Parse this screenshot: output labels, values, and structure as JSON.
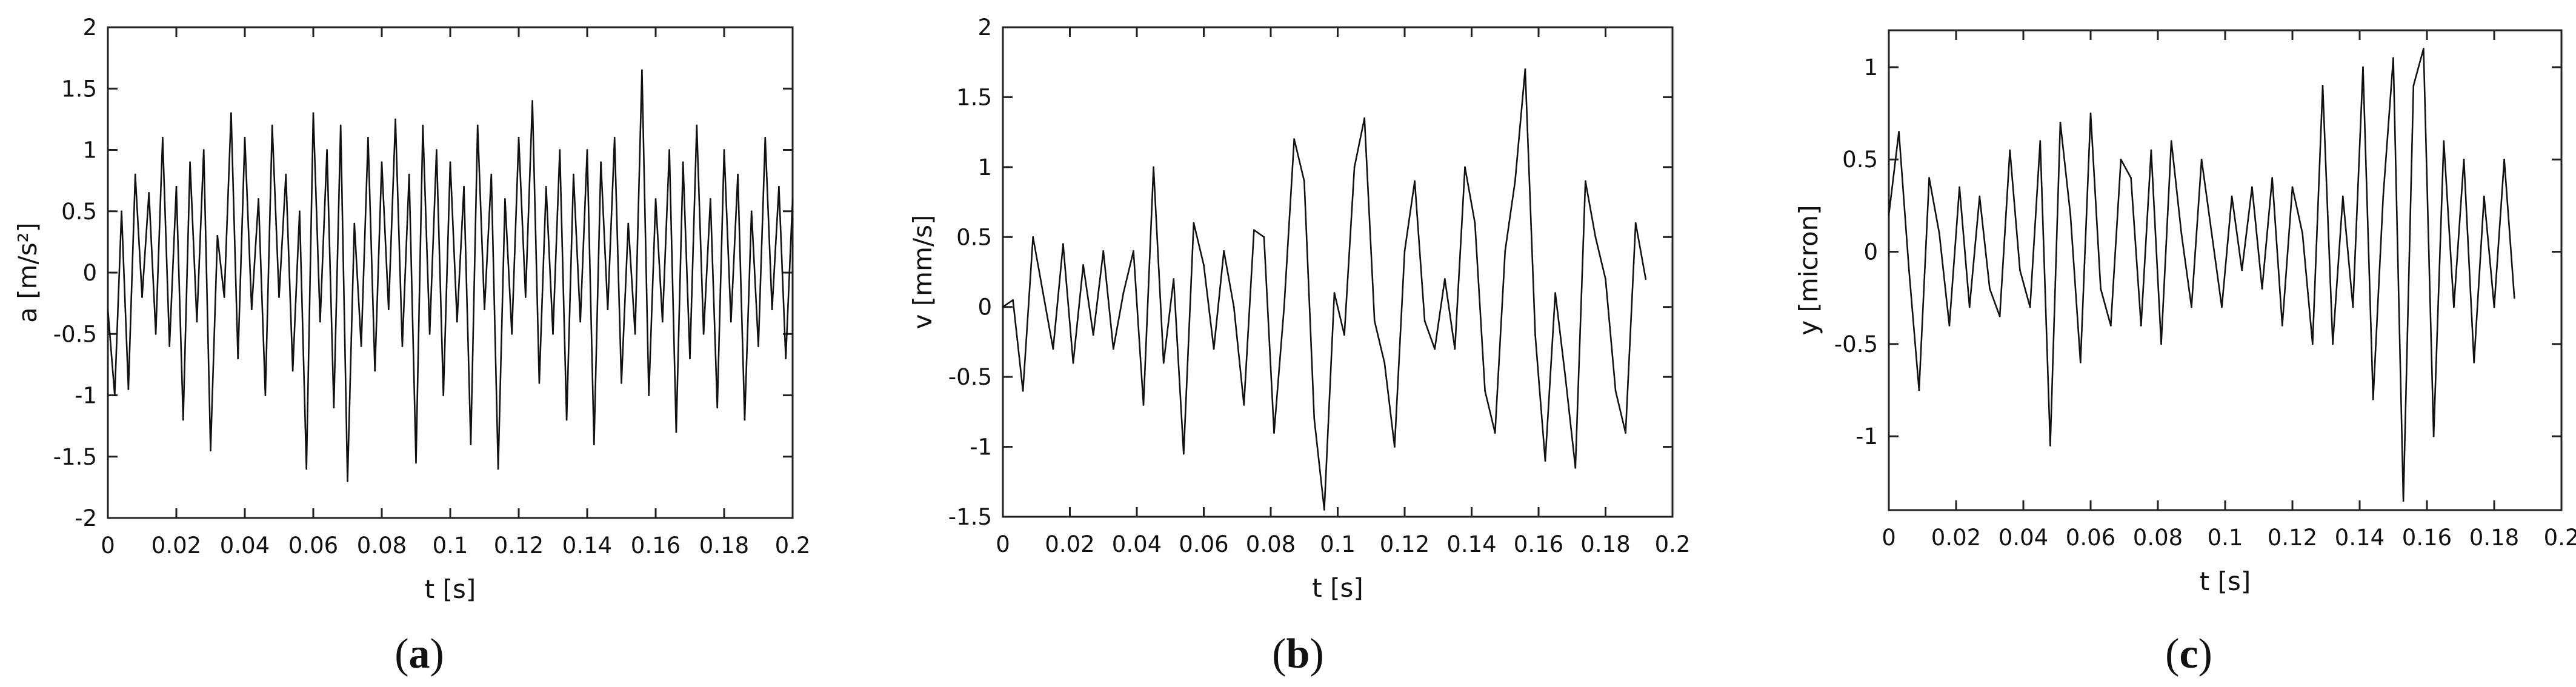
{
  "figure": {
    "panels": [
      {
        "caption_open": "(",
        "caption_letter": "a",
        "caption_close": ")"
      },
      {
        "caption_open": "(",
        "caption_letter": "b",
        "caption_close": ")"
      },
      {
        "caption_open": "(",
        "caption_letter": "c",
        "caption_close": ")"
      }
    ]
  },
  "chart_data": [
    {
      "type": "line",
      "title": "",
      "xlabel": "t [s]",
      "ylabel": "a [m/s²]",
      "xlim": [
        0,
        0.2
      ],
      "ylim": [
        -2,
        2
      ],
      "xticks": [
        0,
        0.02,
        0.04,
        0.06,
        0.08,
        0.1,
        0.12,
        0.14,
        0.16,
        0.18,
        0.2
      ],
      "xtick_labels": [
        "0",
        "0.02",
        "0.04",
        "0.06",
        "0.08",
        "0.1",
        "0.12",
        "0.14",
        "0.16",
        "0.18",
        "0.2"
      ],
      "yticks": [
        -2,
        -1.5,
        -1,
        -0.5,
        0,
        0.5,
        1,
        1.5,
        2
      ],
      "ytick_labels": [
        "-2",
        "-1.5",
        "-1",
        "-0.5",
        "0",
        "0.5",
        "1",
        "1.5",
        "2"
      ],
      "grid": false,
      "series": [
        {
          "x": [
            0,
            0.002,
            0.004,
            0.006,
            0.008,
            0.01,
            0.012,
            0.014,
            0.016,
            0.018,
            0.02,
            0.022,
            0.024,
            0.026,
            0.028,
            0.03,
            0.032,
            0.034,
            0.036,
            0.038,
            0.04,
            0.042,
            0.044,
            0.046,
            0.048,
            0.05,
            0.052,
            0.054,
            0.056,
            0.058,
            0.06,
            0.062,
            0.064,
            0.066,
            0.068,
            0.07,
            0.072,
            0.074,
            0.076,
            0.078,
            0.08,
            0.082,
            0.084,
            0.086,
            0.088,
            0.09,
            0.092,
            0.094,
            0.096,
            0.098,
            0.1,
            0.102,
            0.104,
            0.106,
            0.108,
            0.11,
            0.112,
            0.114,
            0.116,
            0.118,
            0.12,
            0.122,
            0.124,
            0.126,
            0.128,
            0.13,
            0.132,
            0.134,
            0.136,
            0.138,
            0.14,
            0.142,
            0.144,
            0.146,
            0.148,
            0.15,
            0.152,
            0.154,
            0.156,
            0.158,
            0.16,
            0.162,
            0.164,
            0.166,
            0.168,
            0.17,
            0.172,
            0.174,
            0.176,
            0.178,
            0.18,
            0.182,
            0.184,
            0.186,
            0.188,
            0.19,
            0.192,
            0.194,
            0.196,
            0.198,
            0.2
          ],
          "y": [
            -0.3,
            -1.0,
            0.5,
            -0.95,
            0.8,
            -0.2,
            0.65,
            -0.5,
            1.1,
            -0.6,
            0.7,
            -1.2,
            0.9,
            -0.4,
            1.0,
            -1.45,
            0.3,
            -0.2,
            1.3,
            -0.7,
            1.1,
            -0.3,
            0.6,
            -1.0,
            1.2,
            -0.2,
            0.8,
            -0.8,
            0.5,
            -1.6,
            1.3,
            -0.4,
            1.0,
            -1.1,
            1.2,
            -1.7,
            0.4,
            -0.6,
            1.1,
            -0.8,
            0.9,
            -0.3,
            1.25,
            -0.6,
            0.8,
            -1.55,
            1.2,
            -0.5,
            1.0,
            -1.0,
            0.9,
            -0.4,
            0.7,
            -1.4,
            1.2,
            -0.3,
            0.8,
            -1.6,
            0.6,
            -0.5,
            1.1,
            -0.2,
            1.4,
            -0.9,
            0.7,
            -0.5,
            1.0,
            -1.2,
            0.8,
            -0.4,
            1.0,
            -1.4,
            0.9,
            -0.3,
            1.1,
            -0.9,
            0.4,
            -0.5,
            1.65,
            -1.0,
            0.6,
            -0.4,
            1.0,
            -1.3,
            0.9,
            -0.7,
            1.2,
            -0.5,
            0.6,
            -1.1,
            1.0,
            -0.4,
            0.8,
            -1.2,
            0.5,
            -0.6,
            1.1,
            -0.3,
            0.7,
            -0.7,
            0.6
          ]
        }
      ]
    },
    {
      "type": "line",
      "title": "",
      "xlabel": "t [s]",
      "ylabel": "v [mm/s]",
      "xlim": [
        0,
        0.2
      ],
      "ylim": [
        -1.5,
        2
      ],
      "xticks": [
        0,
        0.02,
        0.04,
        0.06,
        0.08,
        0.1,
        0.12,
        0.14,
        0.16,
        0.18,
        0.2
      ],
      "xtick_labels": [
        "0",
        "0.02",
        "0.04",
        "0.06",
        "0.08",
        "0.1",
        "0.12",
        "0.14",
        "0.16",
        "0.18",
        "0.2"
      ],
      "yticks": [
        -1.5,
        -1,
        -0.5,
        0,
        0.5,
        1,
        1.5,
        2
      ],
      "ytick_labels": [
        "-1.5",
        "-1",
        "-0.5",
        "0",
        "0.5",
        "1",
        "1.5",
        "2"
      ],
      "grid": false,
      "series": [
        {
          "x": [
            0,
            0.003,
            0.006,
            0.009,
            0.012,
            0.015,
            0.018,
            0.021,
            0.024,
            0.027,
            0.03,
            0.033,
            0.036,
            0.039,
            0.042,
            0.045,
            0.048,
            0.051,
            0.054,
            0.057,
            0.06,
            0.063,
            0.066,
            0.069,
            0.072,
            0.075,
            0.078,
            0.081,
            0.084,
            0.087,
            0.09,
            0.093,
            0.096,
            0.099,
            0.102,
            0.105,
            0.108,
            0.111,
            0.114,
            0.117,
            0.12,
            0.123,
            0.126,
            0.129,
            0.132,
            0.135,
            0.138,
            0.141,
            0.144,
            0.147,
            0.15,
            0.153,
            0.156,
            0.159,
            0.162,
            0.165,
            0.168,
            0.171,
            0.174,
            0.177,
            0.18,
            0.183,
            0.186,
            0.189,
            0.192
          ],
          "y": [
            0.0,
            0.05,
            -0.6,
            0.5,
            0.1,
            -0.3,
            0.45,
            -0.4,
            0.3,
            -0.2,
            0.4,
            -0.3,
            0.1,
            0.4,
            -0.7,
            1.0,
            -0.4,
            0.2,
            -1.05,
            0.6,
            0.3,
            -0.3,
            0.4,
            0.0,
            -0.7,
            0.55,
            0.5,
            -0.9,
            0.0,
            1.2,
            0.9,
            -0.8,
            -1.45,
            0.1,
            -0.2,
            1.0,
            1.35,
            -0.1,
            -0.4,
            -1.0,
            0.4,
            0.9,
            -0.1,
            -0.3,
            0.2,
            -0.3,
            1.0,
            0.6,
            -0.6,
            -0.9,
            0.4,
            0.9,
            1.7,
            -0.2,
            -1.1,
            0.1,
            -0.5,
            -1.15,
            0.9,
            0.5,
            0.2,
            -0.6,
            -0.9,
            0.6,
            0.2
          ]
        }
      ]
    },
    {
      "type": "line",
      "title": "",
      "xlabel": "t [s]",
      "ylabel": "y [micron]",
      "xlim": [
        0,
        0.2
      ],
      "ylim": [
        -1.4,
        1.2
      ],
      "xticks": [
        0,
        0.02,
        0.04,
        0.06,
        0.08,
        0.1,
        0.12,
        0.14,
        0.16,
        0.18,
        0.2
      ],
      "xtick_labels": [
        "0",
        "0.02",
        "0.04",
        "0.06",
        "0.08",
        "0.1",
        "0.12",
        "0.14",
        "0.16",
        "0.18",
        "0.2"
      ],
      "yticks": [
        -1,
        -0.5,
        0,
        0.5,
        1
      ],
      "ytick_labels": [
        "-1",
        "-0.5",
        "0",
        "0.5",
        "1"
      ],
      "grid": false,
      "series": [
        {
          "x": [
            0,
            0.003,
            0.006,
            0.009,
            0.012,
            0.015,
            0.018,
            0.021,
            0.024,
            0.027,
            0.03,
            0.033,
            0.036,
            0.039,
            0.042,
            0.045,
            0.048,
            0.051,
            0.054,
            0.057,
            0.06,
            0.063,
            0.066,
            0.069,
            0.072,
            0.075,
            0.078,
            0.081,
            0.084,
            0.087,
            0.09,
            0.093,
            0.096,
            0.099,
            0.102,
            0.105,
            0.108,
            0.111,
            0.114,
            0.117,
            0.12,
            0.123,
            0.126,
            0.129,
            0.132,
            0.135,
            0.138,
            0.141,
            0.144,
            0.147,
            0.15,
            0.153,
            0.156,
            0.159,
            0.162,
            0.165,
            0.168,
            0.171,
            0.174,
            0.177,
            0.18,
            0.183,
            0.186
          ],
          "y": [
            0.2,
            0.65,
            -0.1,
            -0.75,
            0.4,
            0.1,
            -0.4,
            0.35,
            -0.3,
            0.3,
            -0.2,
            -0.35,
            0.55,
            -0.1,
            -0.3,
            0.6,
            -1.05,
            0.7,
            0.2,
            -0.6,
            0.75,
            -0.2,
            -0.4,
            0.5,
            0.4,
            -0.4,
            0.55,
            -0.5,
            0.6,
            0.1,
            -0.3,
            0.5,
            0.1,
            -0.3,
            0.3,
            -0.1,
            0.35,
            -0.2,
            0.4,
            -0.4,
            0.35,
            0.1,
            -0.5,
            0.9,
            -0.5,
            0.3,
            -0.3,
            1.0,
            -0.8,
            0.3,
            1.05,
            -1.35,
            0.9,
            1.1,
            -1.0,
            0.6,
            -0.3,
            0.5,
            -0.6,
            0.3,
            -0.3,
            0.5,
            -0.25
          ]
        }
      ]
    }
  ]
}
